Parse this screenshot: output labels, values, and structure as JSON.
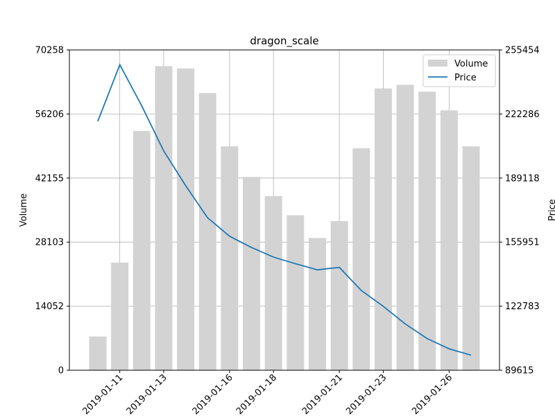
{
  "chart_data": {
    "type": "bar+line",
    "title": "dragon_scale",
    "ylabel_left": "Volume",
    "ylabel_right": "Price",
    "dates": [
      "2019-01-10",
      "2019-01-11",
      "2019-01-12",
      "2019-01-13",
      "2019-01-14",
      "2019-01-15",
      "2019-01-16",
      "2019-01-17",
      "2019-01-18",
      "2019-01-19",
      "2019-01-20",
      "2019-01-21",
      "2019-01-22",
      "2019-01-23",
      "2019-01-24",
      "2019-01-25",
      "2019-01-26",
      "2019-01-27"
    ],
    "x_tick_labels": [
      "2019-01-11",
      "2019-01-13",
      "2019-01-16",
      "2019-01-18",
      "2019-01-21",
      "2019-01-23",
      "2019-01-26"
    ],
    "left_ylim": [
      0,
      70258
    ],
    "left_ticks": [
      0,
      14052,
      28103,
      42155,
      56206,
      70258
    ],
    "right_ylim": [
      89615,
      255454
    ],
    "right_ticks": [
      89615,
      122783,
      155951,
      189118,
      222286,
      255454
    ],
    "series": [
      {
        "name": "Volume",
        "kind": "bar",
        "color": "#d3d3d3",
        "values": [
          7400,
          23600,
          52500,
          66700,
          66200,
          60800,
          49100,
          42400,
          38200,
          34000,
          29000,
          32700,
          48700,
          61800,
          62600,
          61100,
          57000,
          49100
        ]
      },
      {
        "name": "Price",
        "kind": "line",
        "color": "#1f77b4",
        "values": [
          218500,
          247800,
          226500,
          203200,
          185200,
          168500,
          159000,
          153200,
          148200,
          144800,
          141600,
          142900,
          130900,
          122700,
          113600,
          106000,
          100700,
          97400
        ]
      }
    ],
    "grid": true,
    "legend_position": "upper-right"
  }
}
